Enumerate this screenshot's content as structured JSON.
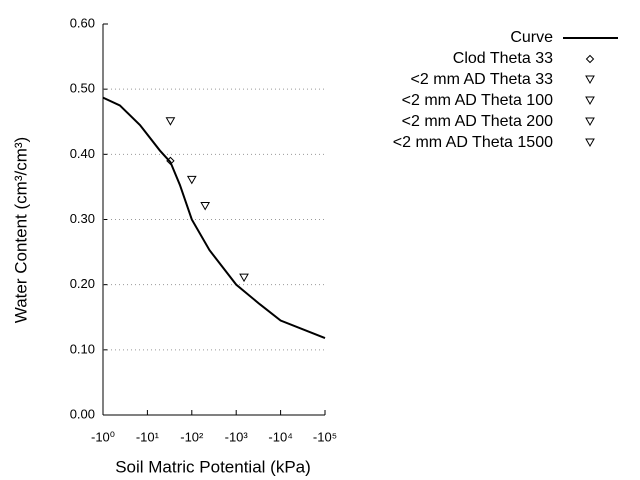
{
  "chart_data": {
    "type": "scatter",
    "x_label": "Soil Matric Potential (kPa)",
    "y_label": "Water Content (cm³/cm³)",
    "x_log": true,
    "xlim": [
      -1,
      -100000
    ],
    "xticks": [
      {
        "value": -1,
        "label": "-10⁰"
      },
      {
        "value": -10,
        "label": "-10¹"
      },
      {
        "value": -100,
        "label": "-10²"
      },
      {
        "value": -1000,
        "label": "-10³"
      },
      {
        "value": -10000,
        "label": "-10⁴"
      },
      {
        "value": -100000,
        "label": "-10⁵"
      }
    ],
    "ylim": [
      0,
      0.6
    ],
    "yticks": [
      {
        "value": 0,
        "label": "0.00"
      },
      {
        "value": 0.1,
        "label": "0.10"
      },
      {
        "value": 0.2,
        "label": "0.20"
      },
      {
        "value": 0.3,
        "label": "0.30"
      },
      {
        "value": 0.4,
        "label": "0.40"
      },
      {
        "value": 0.5,
        "label": "0.50"
      },
      {
        "value": 0.6,
        "label": "0.60"
      }
    ],
    "grid": true,
    "legend": "upper right",
    "series": [
      {
        "name": "Curve",
        "type": "line",
        "color": "#000000",
        "x": [
          -1,
          -2.4,
          -6.8,
          -19,
          -33,
          -54,
          -100,
          -250,
          -1000,
          -3400,
          -10000,
          -100000
        ],
        "values": [
          0.487,
          0.475,
          0.445,
          0.406,
          0.388,
          0.353,
          0.3,
          0.253,
          0.2,
          0.17,
          0.145,
          0.118
        ]
      },
      {
        "name": "Clod Theta 33",
        "type": "scatter",
        "marker": "diamond",
        "color": "#000000",
        "x": [
          -33
        ],
        "values": [
          0.39
        ]
      },
      {
        "name": "<2 mm AD Theta 33",
        "type": "scatter",
        "marker": "triangle-down",
        "color": "#000000",
        "x": [
          -33
        ],
        "values": [
          0.45
        ]
      },
      {
        "name": "<2 mm AD Theta 100",
        "type": "scatter",
        "marker": "triangle-down",
        "color": "#000000",
        "x": [
          -100
        ],
        "values": [
          0.36
        ]
      },
      {
        "name": "<2 mm AD Theta 200",
        "type": "scatter",
        "marker": "triangle-down",
        "color": "#000000",
        "x": [
          -200
        ],
        "values": [
          0.32
        ]
      },
      {
        "name": "<2 mm AD Theta 1500",
        "type": "scatter",
        "marker": "triangle-down",
        "color": "#000000",
        "x": [
          -1500
        ],
        "values": [
          0.21
        ]
      }
    ]
  }
}
